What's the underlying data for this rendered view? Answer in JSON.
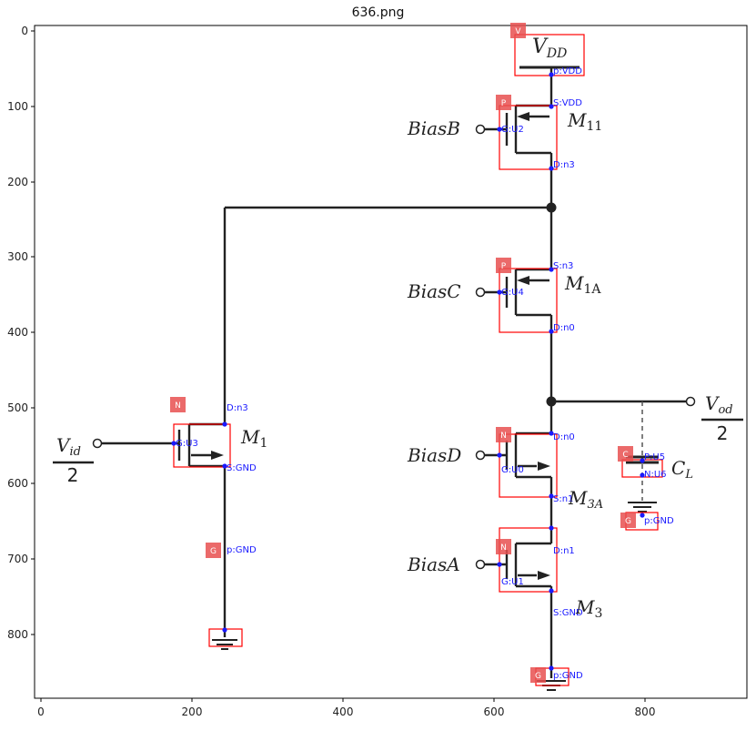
{
  "title": "636.png",
  "axes": {
    "x_ticks": [
      "0",
      "200",
      "400",
      "600",
      "800"
    ],
    "y_ticks": [
      "0",
      "100",
      "200",
      "300",
      "400",
      "500",
      "600",
      "700",
      "800"
    ]
  },
  "colors": {
    "wire": "#222222",
    "box": "#ff0000",
    "tag_fill": "#e85050",
    "pin": "#1a1aff"
  },
  "labels": {
    "vdd_main": "V",
    "vdd_sub": "DD",
    "m11_main": "M",
    "m11_sub": "11",
    "m1a_main": "M",
    "m1a_sub": "1A",
    "m1_main": "M",
    "m1_sub": "1",
    "m3a_main": "M",
    "m3a_sub": "3A",
    "m3_main": "M",
    "m3_sub": "3",
    "cl_main": "C",
    "cl_sub": "L",
    "vid_main": "V",
    "vid_sub": "id",
    "vid_den": "2",
    "vod_main": "V",
    "vod_sub": "od",
    "vod_den": "2",
    "biasB": "BiasB",
    "biasC": "BiasC",
    "biasD": "BiasD",
    "biasA": "BiasA"
  },
  "tags": {
    "v": "V",
    "p11": "P",
    "p1a": "P",
    "n1": "N",
    "n3a": "N",
    "n3": "N",
    "c": "C",
    "g1": "G",
    "gc": "G",
    "g3": "G"
  },
  "pins": {
    "vdd_p": "p:VDD",
    "m11_s": "S:VDD",
    "m11_g": "G:U2",
    "m11_d": "D:n3",
    "m1a_s": "S:n3",
    "m1a_g": "G:U4",
    "m1a_d": "D:n0",
    "m1_d": "D:n3",
    "m1_g": "G:U3",
    "m1_s": "S:GND",
    "g1_p": "p:GND",
    "m3a_d": "D:n0",
    "m3a_g": "G:U0",
    "m3a_s": "S:n1",
    "cl_p": "P:U5",
    "cl_n": "N:U6",
    "gc_p": "p:GND",
    "m3_d": "D:n1",
    "m3_g": "G:U1",
    "m3_s": "S:GND",
    "g3_p": "p:GND"
  }
}
